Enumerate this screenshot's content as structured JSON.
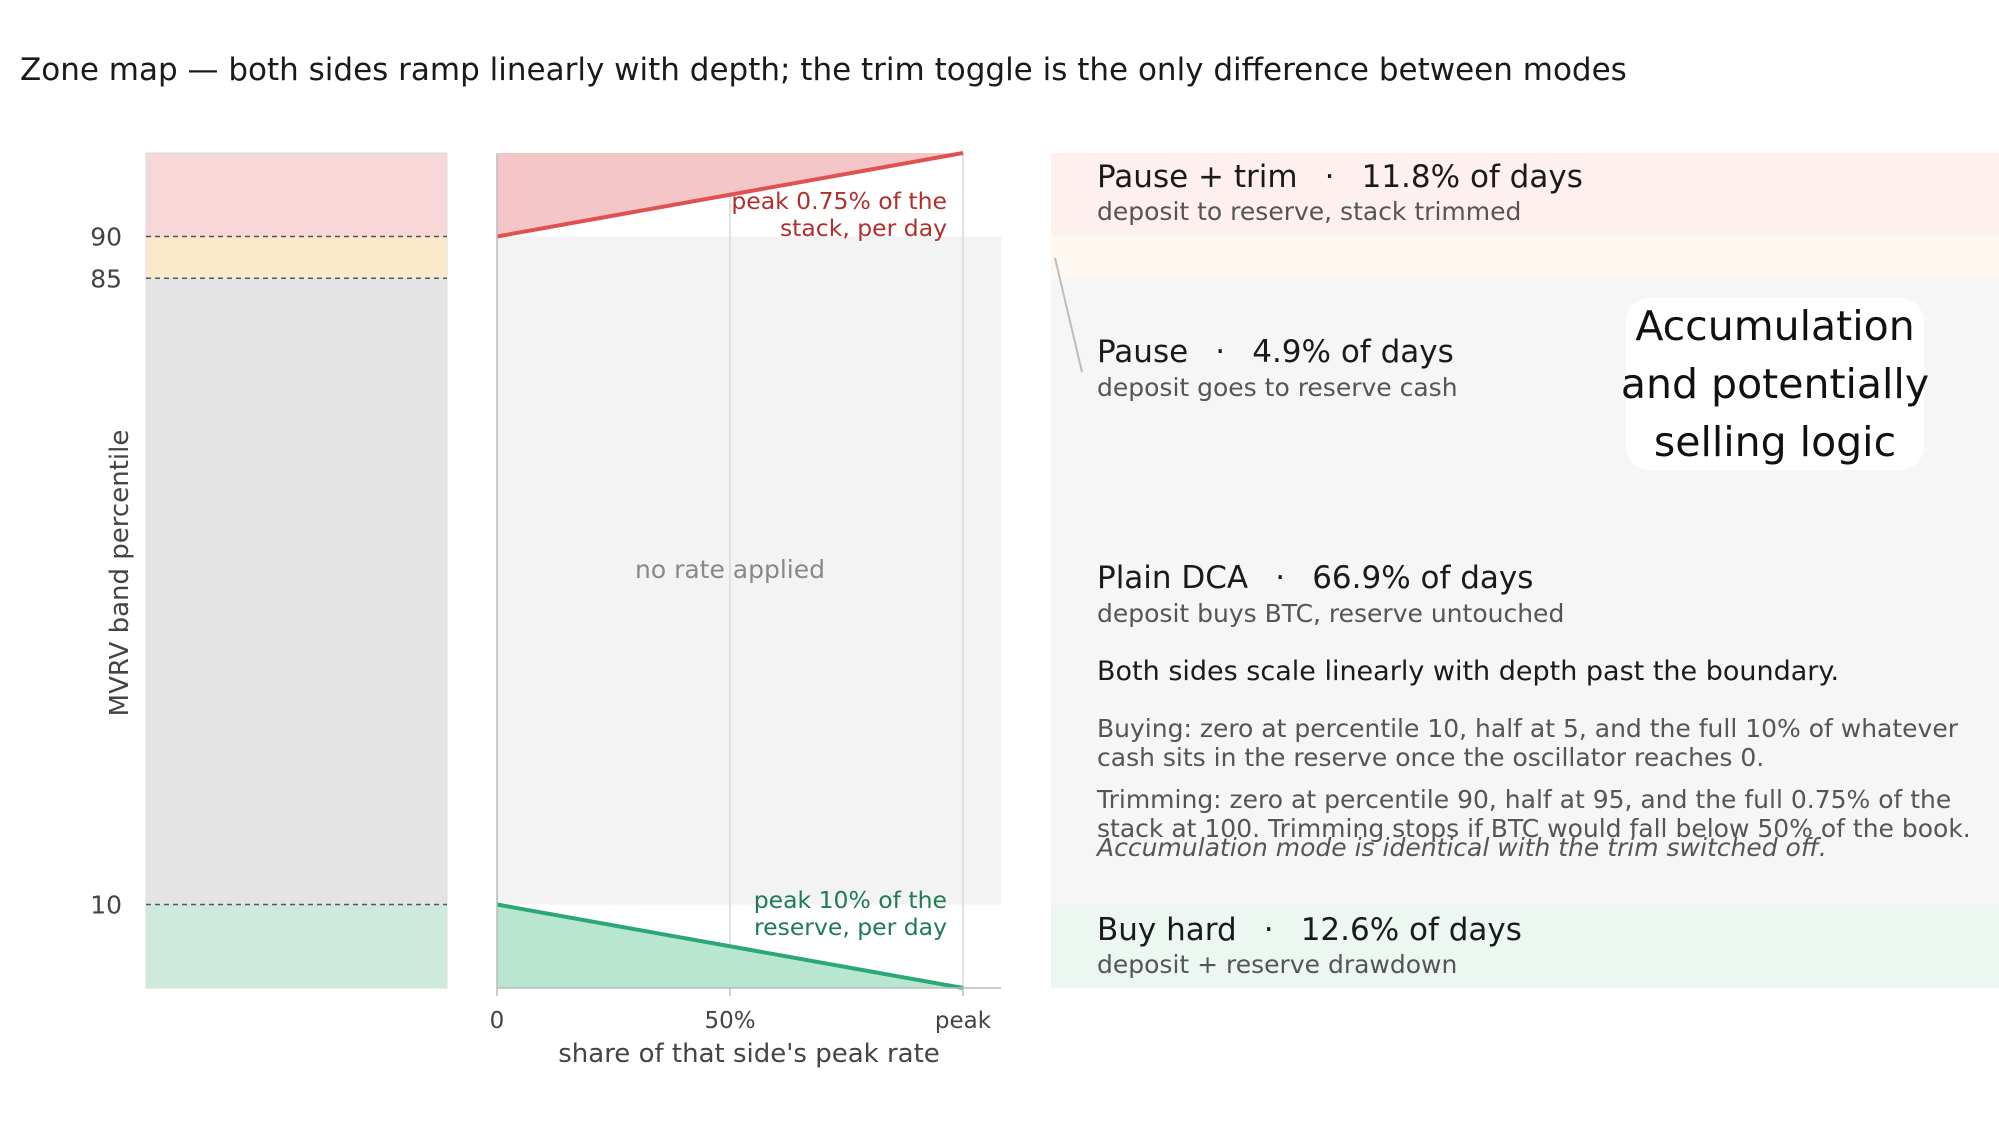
{
  "title": "Zone map — both sides ramp linearly with depth; the trim toggle is the only difference between modes",
  "chart_data": {
    "type": "area",
    "ylabel": "MVRV band percentile",
    "xlabel": "share of that side's peak rate",
    "ylim": [
      0,
      100
    ],
    "y_ticks": [
      "10",
      "85",
      "90"
    ],
    "x_ticks": [
      "0",
      "50%",
      "peak"
    ],
    "x_range": [
      0,
      1
    ],
    "band_boundaries": [
      10,
      85,
      90
    ],
    "bands": [
      {
        "from": 90,
        "to": 100,
        "color": "#f8d7d8"
      },
      {
        "from": 85,
        "to": 90,
        "color": "#faeacb"
      },
      {
        "from": 10,
        "to": 85,
        "color": "#e4e4e4"
      },
      {
        "from": 0,
        "to": 10,
        "color": "#cdeadc"
      }
    ],
    "series": [
      {
        "color": "#e05252",
        "points": [
          [
            0,
            90
          ],
          [
            1,
            100
          ]
        ]
      },
      {
        "color": "#2aa877",
        "points": [
          [
            0,
            10
          ],
          [
            1,
            0
          ]
        ]
      }
    ],
    "annotations": {
      "sell_peak": [
        "peak 0.75% of the",
        "stack, per day"
      ],
      "buy_peak": [
        "peak 10% of the",
        "reserve, per day"
      ],
      "no_rate": "no rate applied"
    }
  },
  "zones": [
    {
      "name": "Pause + trim",
      "share": "11.8% of days",
      "desc": "deposit to reserve, stack trimmed",
      "bg": "#fdf0ee"
    },
    {
      "name": "Pause",
      "share": "4.9% of days",
      "desc": "deposit goes to reserve cash",
      "bg": "#f6f6f6"
    },
    {
      "name": "Plain DCA",
      "share": "66.9% of days",
      "desc": "deposit buys BTC, reserve untouched",
      "bg": "#f6f6f6"
    },
    {
      "name": "Buy hard",
      "share": "12.6% of days",
      "desc": "deposit + reserve drawdown",
      "bg": "#ecf7f2"
    }
  ],
  "separator": "·",
  "notes": {
    "heading": "Both sides scale linearly with depth past the boundary.",
    "buying": [
      "Buying:  zero at percentile 10, half at 5, and the full 10% of whatever",
      "cash sits in the reserve once the oscillator reaches 0."
    ],
    "trimming": [
      "Trimming:  zero at percentile 90, half at 95, and the full 0.75% of the",
      "stack at 100. Trimming stops if BTC would fall below 50% of the book."
    ],
    "accumulation": "Accumulation mode is identical with the trim switched off."
  },
  "callout": [
    "Accumulation",
    "and potentially",
    "selling logic"
  ]
}
